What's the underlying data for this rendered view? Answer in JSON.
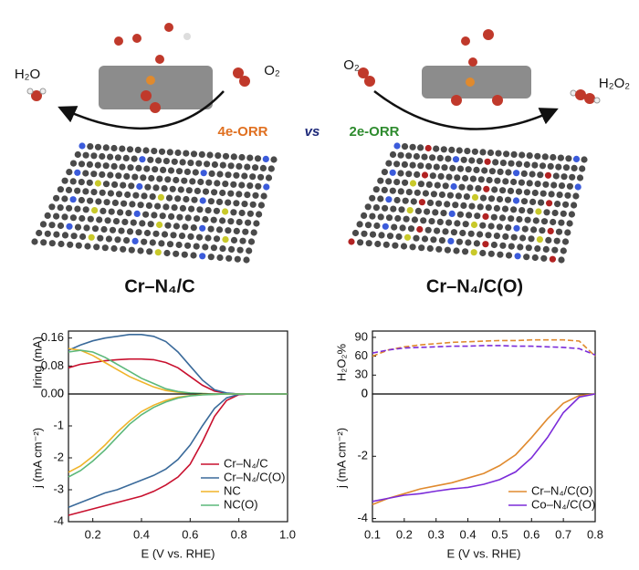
{
  "scheme": {
    "left_product": "H₂O",
    "left_reactant": "O₂",
    "right_reactant": "O₂",
    "right_product": "H₂O₂",
    "pathway_left": "4e-ORR",
    "versus": "vs",
    "pathway_right": "2e-ORR",
    "catalyst_left": "Cr–N₄/C",
    "catalyst_right": "Cr–N₄/C(O)"
  },
  "chart_data": [
    {
      "type": "line",
      "ylabel": "Iring (mA)",
      "x": [
        0.1,
        0.15,
        0.2,
        0.25,
        0.3,
        0.35,
        0.4,
        0.45,
        0.5,
        0.55,
        0.6,
        0.65,
        0.7,
        0.75,
        0.8,
        0.85,
        0.9,
        0.95,
        1.0
      ],
      "xlim": [
        0.1,
        1.0
      ],
      "ylim": [
        0,
        0.18
      ],
      "yticks": [
        {
          "value": 0,
          "label": "0.00"
        },
        0.08,
        0.16
      ],
      "series": [
        {
          "color": "#c8102e",
          "values": [
            0.075,
            0.085,
            0.09,
            0.095,
            0.098,
            0.1,
            0.1,
            0.098,
            0.09,
            0.075,
            0.05,
            0.025,
            0.008,
            0.002,
            0,
            0,
            0,
            0,
            0
          ]
        },
        {
          "color": "#3a6a9a",
          "values": [
            0.125,
            0.14,
            0.152,
            0.16,
            0.165,
            0.17,
            0.17,
            0.165,
            0.15,
            0.12,
            0.08,
            0.04,
            0.012,
            0.003,
            0,
            0,
            0,
            0,
            0
          ]
        },
        {
          "color": "#f0b429",
          "values": [
            0.13,
            0.125,
            0.11,
            0.09,
            0.07,
            0.05,
            0.035,
            0.02,
            0.01,
            0.005,
            0.002,
            0.001,
            0,
            0,
            0,
            0,
            0,
            0,
            0
          ]
        },
        {
          "color": "#5cb87a",
          "values": [
            0.12,
            0.125,
            0.12,
            0.105,
            0.085,
            0.065,
            0.045,
            0.03,
            0.015,
            0.007,
            0.003,
            0.001,
            0,
            0,
            0,
            0,
            0,
            0,
            0
          ]
        }
      ]
    },
    {
      "type": "line",
      "ylabel": "j (mA cm⁻²)",
      "xlabel": "E (V vs. RHE)",
      "x": [
        0.1,
        0.15,
        0.2,
        0.25,
        0.3,
        0.35,
        0.4,
        0.45,
        0.5,
        0.55,
        0.6,
        0.65,
        0.7,
        0.75,
        0.8,
        0.85,
        0.9,
        0.95,
        1.0
      ],
      "xlim": [
        0.1,
        1.0
      ],
      "ylim": [
        -4,
        0
      ],
      "xticks": [
        0.2,
        0.4,
        0.6,
        0.8,
        {
          "value": 1.0,
          "label": "1.0"
        }
      ],
      "yticks": [
        0,
        -1,
        -2,
        -3,
        -4
      ],
      "series": [
        {
          "name": "Cr–N₄/C",
          "color": "#c8102e",
          "values": [
            -3.8,
            -3.7,
            -3.6,
            -3.5,
            -3.4,
            -3.3,
            -3.2,
            -3.05,
            -2.85,
            -2.6,
            -2.2,
            -1.5,
            -0.7,
            -0.2,
            -0.02,
            0,
            0,
            0,
            0
          ]
        },
        {
          "name": "Cr–N₄/C(O)",
          "color": "#3a6a9a",
          "values": [
            -3.55,
            -3.4,
            -3.25,
            -3.1,
            -3.0,
            -2.85,
            -2.7,
            -2.55,
            -2.35,
            -2.05,
            -1.6,
            -1.0,
            -0.45,
            -0.12,
            -0.01,
            0,
            0,
            0,
            0
          ]
        },
        {
          "name": "NC",
          "color": "#f0b429",
          "values": [
            -2.45,
            -2.25,
            -1.95,
            -1.6,
            -1.2,
            -0.85,
            -0.55,
            -0.35,
            -0.2,
            -0.1,
            -0.05,
            -0.02,
            -0.01,
            0,
            0,
            0,
            0,
            0,
            0
          ]
        },
        {
          "name": "NC(O)",
          "color": "#5cb87a",
          "values": [
            -2.6,
            -2.4,
            -2.1,
            -1.75,
            -1.35,
            -0.95,
            -0.65,
            -0.42,
            -0.25,
            -0.13,
            -0.06,
            -0.03,
            -0.01,
            0,
            0,
            0,
            0,
            0,
            0
          ]
        }
      ]
    },
    {
      "type": "line",
      "ylabel": "H₂O₂%",
      "x": [
        0.1,
        0.15,
        0.2,
        0.25,
        0.3,
        0.35,
        0.4,
        0.45,
        0.5,
        0.55,
        0.6,
        0.65,
        0.7,
        0.75,
        0.8
      ],
      "xlim": [
        0.1,
        0.8
      ],
      "ylim": [
        0,
        100
      ],
      "yticks": [
        0,
        30,
        60,
        90
      ],
      "dashed": true,
      "series": [
        {
          "color": "#e08a2e",
          "values": [
            60,
            70,
            75,
            78,
            80,
            82,
            83,
            84,
            85,
            85,
            86,
            86,
            86,
            84,
            60
          ]
        },
        {
          "color": "#7b2bd9",
          "values": [
            65,
            70,
            73,
            74,
            75,
            76,
            76,
            77,
            77,
            76,
            76,
            75,
            74,
            72,
            62
          ]
        }
      ]
    },
    {
      "type": "line",
      "ylabel": "j (mA cm⁻²)",
      "xlabel": "E (V vs. RHE)",
      "x": [
        0.1,
        0.15,
        0.2,
        0.25,
        0.3,
        0.35,
        0.4,
        0.45,
        0.5,
        0.55,
        0.6,
        0.65,
        0.7,
        0.75,
        0.8
      ],
      "xlim": [
        0.1,
        0.8
      ],
      "ylim": [
        -4.1,
        0
      ],
      "xticks": [
        0.1,
        0.2,
        0.3,
        0.4,
        0.5,
        0.6,
        0.7,
        0.8
      ],
      "yticks": [
        0,
        -2,
        -4
      ],
      "series": [
        {
          "name": "Cr–N₄/C(O)",
          "color": "#e08a2e",
          "values": [
            -3.55,
            -3.35,
            -3.2,
            -3.05,
            -2.95,
            -2.85,
            -2.7,
            -2.55,
            -2.3,
            -1.95,
            -1.4,
            -0.8,
            -0.3,
            -0.05,
            0
          ]
        },
        {
          "name": "Co–N₄/C(O)",
          "color": "#7b2bd9",
          "values": [
            -3.45,
            -3.35,
            -3.25,
            -3.2,
            -3.12,
            -3.05,
            -3.0,
            -2.9,
            -2.75,
            -2.5,
            -2.05,
            -1.4,
            -0.6,
            -0.1,
            0
          ]
        }
      ]
    }
  ]
}
